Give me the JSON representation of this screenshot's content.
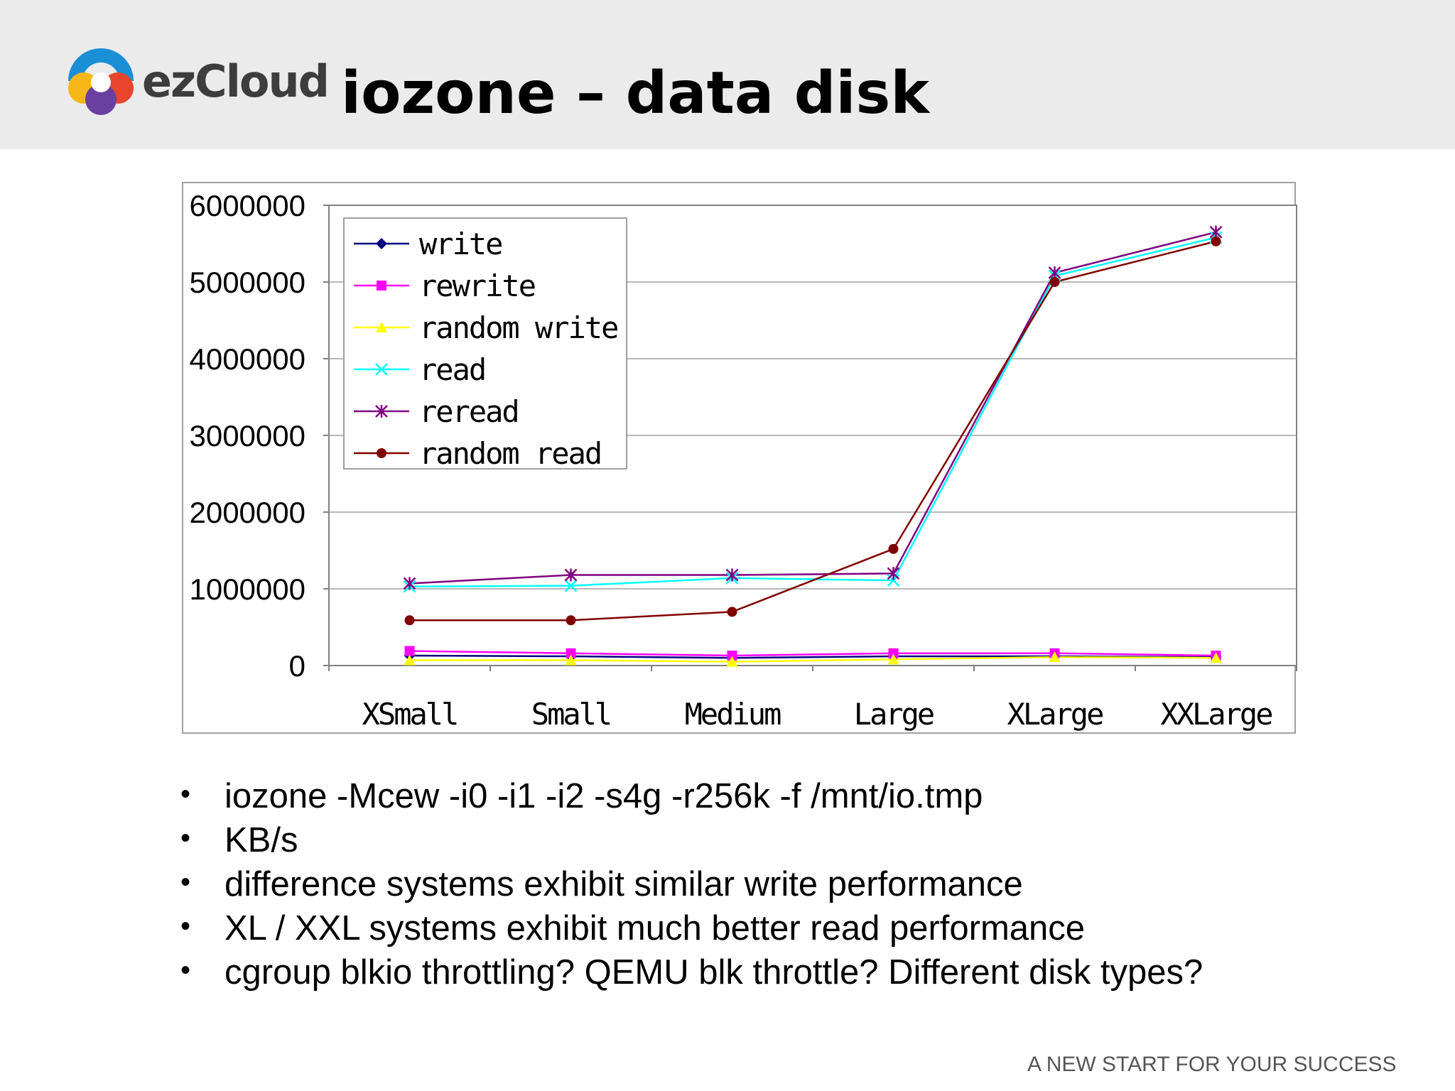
{
  "slide": {
    "title": "iozone – data disk",
    "brand": "ezCloud",
    "footer": "A NEW START FOR YOUR SUCCESS",
    "bullets": [
      "iozone -Mcew -i0 -i1 -i2 -s4g -r256k -f /mnt/io.tmp",
      "KB/s",
      "difference systems exhibit similar write performance",
      "XL / XXL systems exhibit much better read performance",
      "cgroup blkio throttling? QEMU blk throttle? Different disk types?"
    ]
  },
  "chart_data": {
    "type": "line",
    "categories": [
      "XSmall",
      "Small",
      "Medium",
      "Large",
      "XLarge",
      "XXLarge"
    ],
    "ylim": [
      0,
      6000000
    ],
    "yticks": [
      0,
      1000000,
      2000000,
      3000000,
      4000000,
      5000000,
      6000000
    ],
    "grid": true,
    "legend_position": "top-left",
    "series": [
      {
        "name": "write",
        "color": "#000080",
        "marker": "diamond",
        "values": [
          130000,
          120000,
          100000,
          120000,
          120000,
          110000
        ]
      },
      {
        "name": "rewrite",
        "color": "#ff00ff",
        "marker": "square",
        "values": [
          190000,
          160000,
          130000,
          160000,
          160000,
          130000
        ]
      },
      {
        "name": "random write",
        "color": "#ffff00",
        "marker": "triangle",
        "values": [
          70000,
          70000,
          50000,
          80000,
          110000,
          100000
        ]
      },
      {
        "name": "read",
        "color": "#00ffff",
        "marker": "x",
        "values": [
          1030000,
          1040000,
          1140000,
          1110000,
          5080000,
          5580000
        ]
      },
      {
        "name": "reread",
        "color": "#800080",
        "marker": "asterisk",
        "values": [
          1070000,
          1180000,
          1180000,
          1200000,
          5120000,
          5650000
        ]
      },
      {
        "name": "random read",
        "color": "#800000",
        "marker": "circle",
        "values": [
          590000,
          590000,
          700000,
          1520000,
          5000000,
          5530000
        ]
      }
    ]
  }
}
